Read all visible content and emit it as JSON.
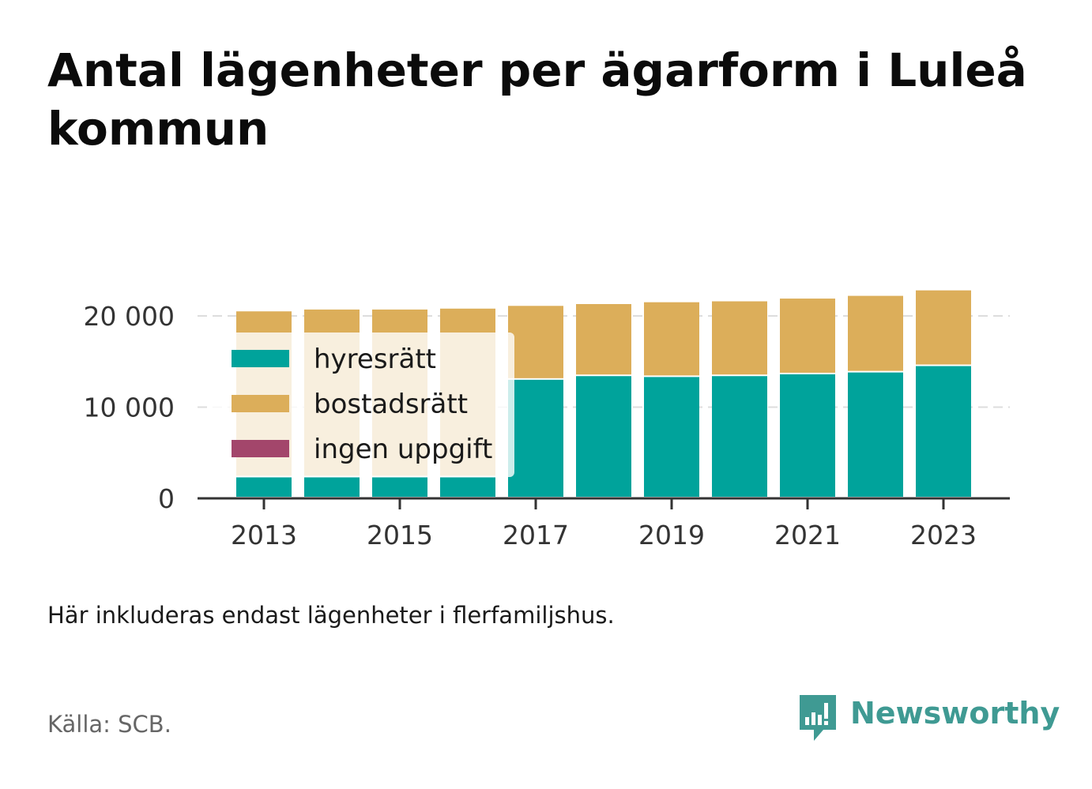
{
  "title": "Antal lägenheter per ägarform i Luleå kommun",
  "note": "Här inkluderas endast lägenheter i flerfamiljshus.",
  "source": "Källa: SCB.",
  "brand": {
    "name": "Newsworthy",
    "icon": "newsworthy-logo-icon",
    "color": "#3f9a93"
  },
  "colors": {
    "hyresratt": "#00a39b",
    "bostadsratt": "#dcae5a",
    "ingen_uppgift": "#a3466b",
    "grid": "#dddddd",
    "axis": "#333333"
  },
  "chart_data": {
    "type": "bar",
    "stacked": true,
    "categories": [
      "2013",
      "2014",
      "2015",
      "2016",
      "2017",
      "2018",
      "2019",
      "2020",
      "2021",
      "2022",
      "2023"
    ],
    "x_tick_labels": [
      "2013",
      "2015",
      "2017",
      "2019",
      "2021",
      "2023"
    ],
    "series": [
      {
        "name": "hyresrätt",
        "color": "#00a39b",
        "values": [
          2300,
          2300,
          2300,
          2300,
          13000,
          13400,
          13300,
          13400,
          13600,
          13800,
          14500
        ]
      },
      {
        "name": "bostadsrätt",
        "color": "#dcae5a",
        "values": [
          18200,
          18400,
          18400,
          18500,
          8100,
          7900,
          8200,
          8200,
          8300,
          8400,
          8300
        ]
      },
      {
        "name": "ingen uppgift",
        "color": "#a3466b",
        "values": [
          0,
          0,
          0,
          0,
          0,
          0,
          0,
          0,
          0,
          0,
          0
        ]
      }
    ],
    "y_ticks": [
      {
        "value": 0,
        "label": "0"
      },
      {
        "value": 10000,
        "label": "10 000"
      },
      {
        "value": 20000,
        "label": "20 000"
      }
    ],
    "ylim": [
      0,
      23000
    ],
    "grid": true,
    "legend_position": "top-left"
  }
}
